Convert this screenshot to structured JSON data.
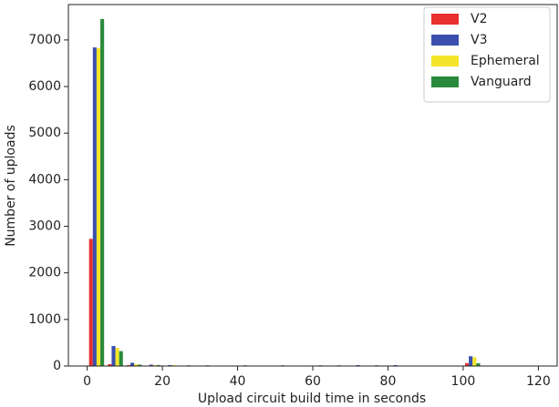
{
  "chart_data": {
    "type": "bar",
    "x_label": "Upload circuit build time in seconds",
    "y_label": "Number of uploads",
    "x": [
      0,
      5,
      10,
      15,
      20,
      25,
      30,
      35,
      40,
      45,
      50,
      55,
      60,
      65,
      70,
      75,
      80,
      85,
      90,
      95,
      100
    ],
    "series": [
      {
        "name": "V2",
        "color": "#e8302e",
        "values": [
          2730,
          40,
          20,
          10,
          10,
          5,
          5,
          0,
          5,
          0,
          5,
          0,
          5,
          5,
          5,
          5,
          5,
          0,
          0,
          0,
          60
        ]
      },
      {
        "name": "V3",
        "color": "#3a4fae",
        "values": [
          6840,
          430,
          70,
          30,
          20,
          15,
          15,
          5,
          15,
          10,
          15,
          5,
          15,
          15,
          20,
          15,
          20,
          5,
          5,
          5,
          210
        ]
      },
      {
        "name": "Ephemeral",
        "color": "#f5e52a",
        "values": [
          6820,
          390,
          40,
          20,
          20,
          10,
          10,
          5,
          10,
          5,
          5,
          0,
          10,
          10,
          10,
          10,
          10,
          0,
          0,
          0,
          190
        ]
      },
      {
        "name": "Vanguard",
        "color": "#2a8a3c",
        "values": [
          7450,
          320,
          30,
          20,
          10,
          10,
          5,
          0,
          5,
          0,
          5,
          0,
          5,
          5,
          5,
          5,
          5,
          0,
          0,
          0,
          60
        ]
      }
    ],
    "xlim": [
      -5,
      125
    ],
    "xticks": [
      0,
      20,
      40,
      60,
      80,
      100,
      120
    ],
    "ylim": [
      0,
      7760
    ],
    "yticks": [
      0,
      1000,
      2000,
      3000,
      4000,
      5000,
      6000,
      7000
    ],
    "legend": "upper right"
  }
}
